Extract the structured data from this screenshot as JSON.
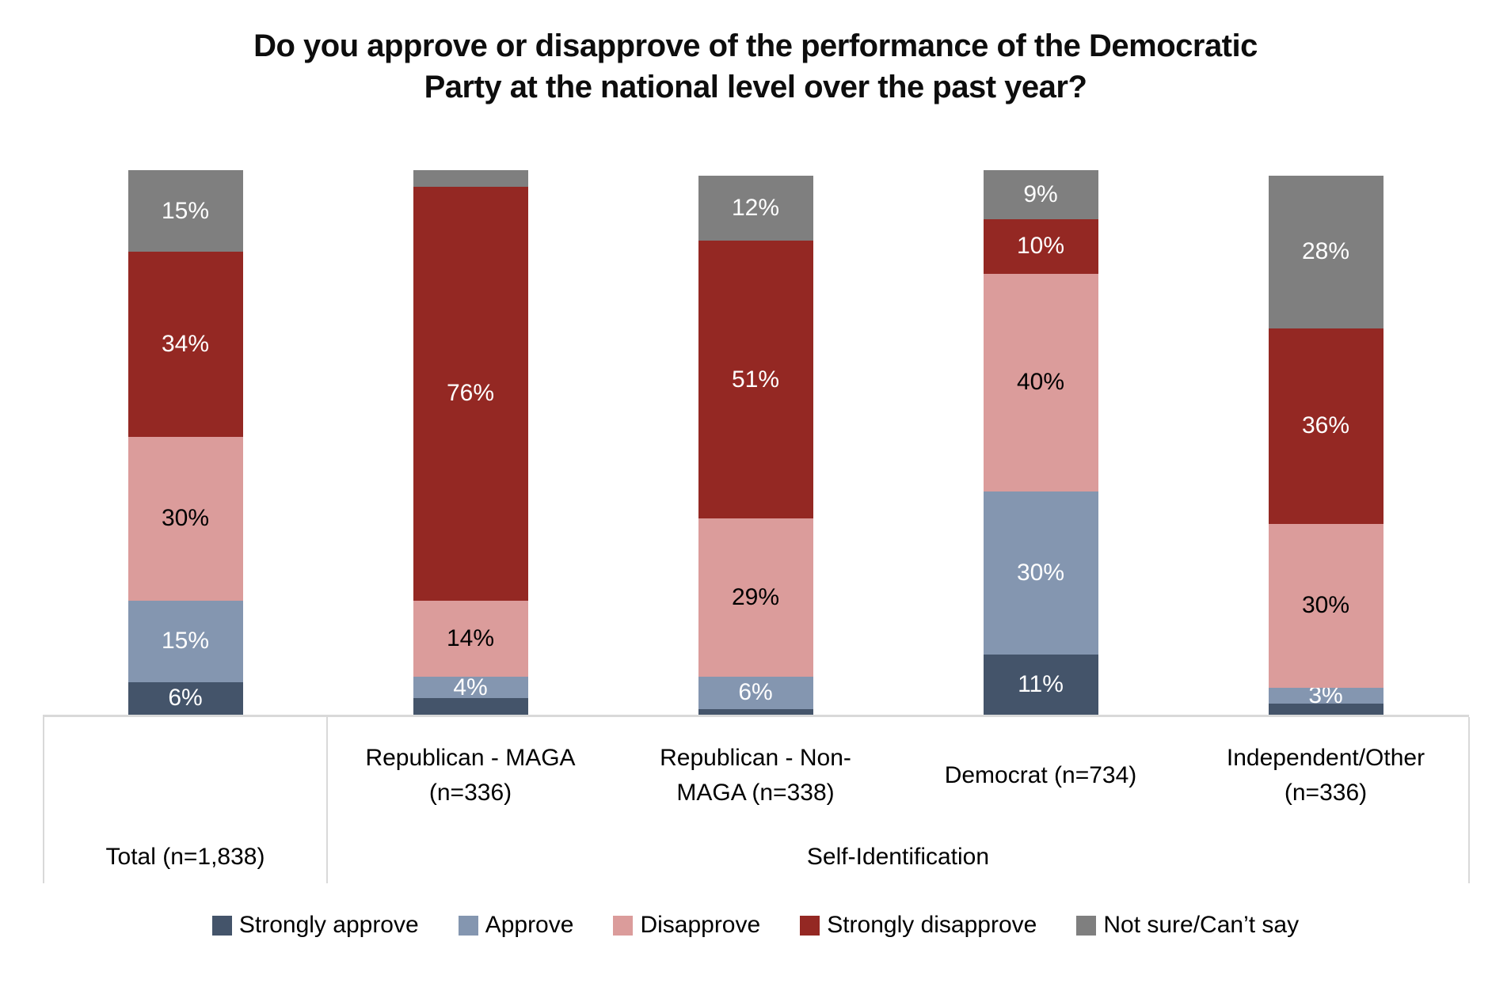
{
  "title": "Do you approve or disapprove of the performance of the Democratic\nParty at the national level over the past year?",
  "chart_data": {
    "type": "bar",
    "variant": "100%-stacked-column",
    "unit": "percent",
    "ylim": [
      0,
      100
    ],
    "grid": false,
    "legend_position": "bottom",
    "axis_line_color": "#d9d9d9",
    "categories": [
      "Total (n=1,838)",
      "Republican - MAGA (n=336)",
      "Republican - Non-MAGA (n=338)",
      "Democrat (n=734)",
      "Independent/Other (n=336)"
    ],
    "series": [
      {
        "name": "Strongly approve",
        "color": "#44546A",
        "label_color": "#FFFFFF",
        "values": [
          6,
          3,
          1,
          11,
          2
        ],
        "labels": [
          "6%",
          "",
          "",
          "11%",
          ""
        ]
      },
      {
        "name": "Approve",
        "color": "#8496B0",
        "label_color": "#FFFFFF",
        "values": [
          15,
          4,
          6,
          30,
          3
        ],
        "labels": [
          "15%",
          "4%",
          "6%",
          "30%",
          "3%"
        ]
      },
      {
        "name": "Disapprove",
        "color": "#DB9C9B",
        "label_color": "#000000",
        "values": [
          30,
          14,
          29,
          40,
          30
        ],
        "labels": [
          "30%",
          "14%",
          "29%",
          "40%",
          "30%"
        ]
      },
      {
        "name": "Strongly disapprove",
        "color": "#942823",
        "label_color": "#FFFFFF",
        "values": [
          34,
          76,
          51,
          10,
          36
        ],
        "labels": [
          "34%",
          "76%",
          "51%",
          "10%",
          "36%"
        ]
      },
      {
        "name": "Not sure/Can’t say",
        "color": "#7F7F7F",
        "label_color": "#FFFFFF",
        "values": [
          15,
          3,
          12,
          9,
          28
        ],
        "labels": [
          "15%",
          "",
          "12%",
          "9%",
          "28%"
        ]
      }
    ]
  },
  "axis_table": {
    "total_label": "Total (n=1,838)",
    "group_label": "Self-Identification",
    "group_categories": [
      "Republican - MAGA (n=336)",
      "Republican - Non-MAGA (n=338)",
      "Democrat (n=734)",
      "Independent/Other (n=336)"
    ]
  }
}
